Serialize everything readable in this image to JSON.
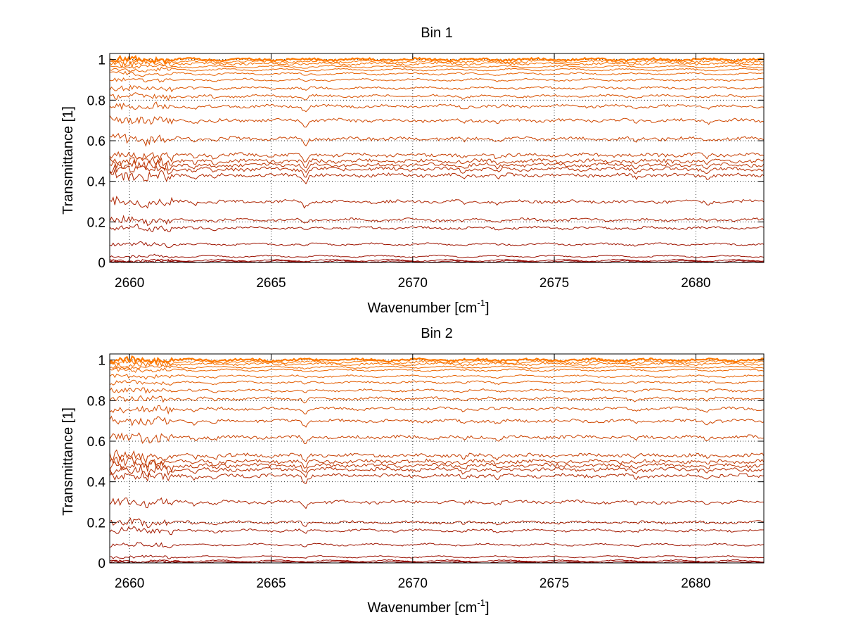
{
  "chart_data": [
    {
      "type": "line",
      "title": "Bin 1",
      "xlabel": "Wavenumber [cm",
      "xlabel_sup": "-1",
      "xlabel_close": "]",
      "ylabel": "Transmittance [1]",
      "xlim": [
        2659.3,
        2682.4
      ],
      "ylim": [
        0,
        1.03
      ],
      "grid": true,
      "grid_style": "dotted",
      "x_ticks": [
        2660,
        2665,
        2670,
        2675,
        2680
      ],
      "x_tick_labels": [
        "2660",
        "2665",
        "2670",
        "2675",
        "2680"
      ],
      "y_ticks": [
        0,
        0.2,
        0.4,
        0.6,
        0.8,
        1
      ],
      "y_tick_labels": [
        "0",
        "0.2",
        "0.4",
        "0.6",
        "0.8",
        "1"
      ],
      "color_dark": "#8b0000",
      "color_light": "#ff7a00",
      "series_levels": [
        0.0,
        0.005,
        0.01,
        0.03,
        0.09,
        0.17,
        0.21,
        0.3,
        0.43,
        0.46,
        0.48,
        0.5,
        0.53,
        0.61,
        0.7,
        0.77,
        0.82,
        0.86,
        0.9,
        0.93,
        0.95,
        0.965,
        0.98,
        0.99,
        1.0
      ]
    },
    {
      "type": "line",
      "title": "Bin 2",
      "xlabel": "Wavenumber [cm",
      "xlabel_sup": "-1",
      "xlabel_close": "]",
      "ylabel": "Transmittance [1]",
      "xlim": [
        2659.3,
        2682.4
      ],
      "ylim": [
        0,
        1.03
      ],
      "grid": true,
      "grid_style": "dotted",
      "x_ticks": [
        2660,
        2665,
        2670,
        2675,
        2680
      ],
      "x_tick_labels": [
        "2660",
        "2665",
        "2670",
        "2675",
        "2680"
      ],
      "y_ticks": [
        0,
        0.2,
        0.4,
        0.6,
        0.8,
        1
      ],
      "y_tick_labels": [
        "0",
        "0.2",
        "0.4",
        "0.6",
        "0.8",
        "1"
      ],
      "color_dark": "#8b0000",
      "color_light": "#ff7a00",
      "series_levels": [
        0.0,
        0.005,
        0.01,
        0.03,
        0.09,
        0.16,
        0.2,
        0.3,
        0.43,
        0.46,
        0.48,
        0.5,
        0.53,
        0.62,
        0.7,
        0.76,
        0.81,
        0.85,
        0.89,
        0.92,
        0.95,
        0.965,
        0.98,
        0.99,
        1.0
      ]
    }
  ]
}
